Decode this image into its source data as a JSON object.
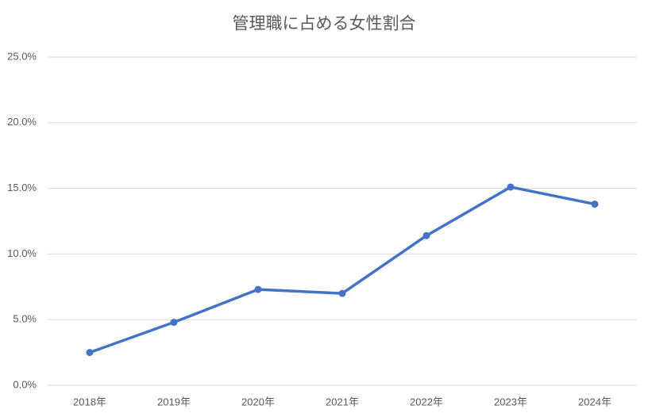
{
  "chart_data": {
    "type": "line",
    "title": "管理職に占める女性割合",
    "categories": [
      "2018年",
      "2019年",
      "2020年",
      "2021年",
      "2022年",
      "2023年",
      "2024年"
    ],
    "series": [
      {
        "name": "女性割合",
        "color": "#4472c4",
        "values": [
          2.5,
          4.8,
          7.3,
          7.0,
          11.4,
          15.1,
          13.8
        ]
      }
    ],
    "ylim": [
      0,
      25
    ],
    "yticks": [
      {
        "value": 0,
        "label": "0.0%"
      },
      {
        "value": 5,
        "label": "5.0%"
      },
      {
        "value": 10,
        "label": "10.0%"
      },
      {
        "value": 15,
        "label": "15.0%"
      },
      {
        "value": 20,
        "label": "20.0%"
      },
      {
        "value": 25,
        "label": "25.0%"
      }
    ],
    "grid": true
  }
}
